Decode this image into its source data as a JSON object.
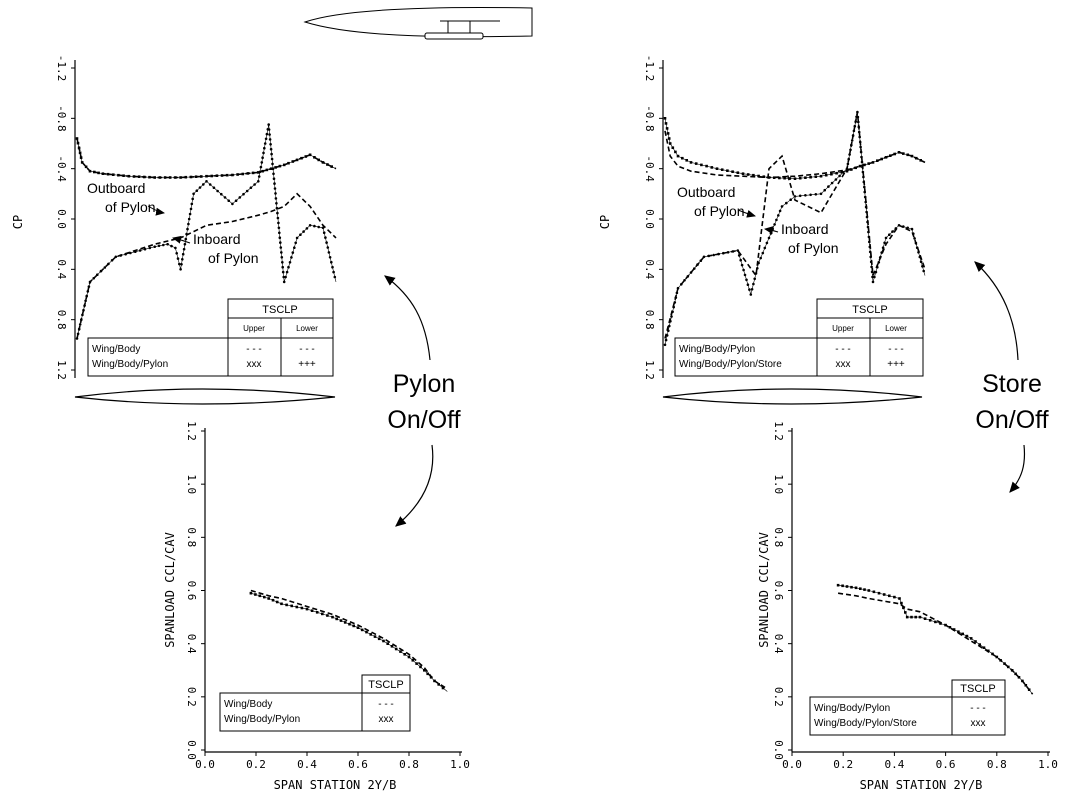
{
  "chart_data": [
    {
      "type": "line",
      "panel": "cp-left",
      "ylabel": "CP",
      "ylim": [
        1.2,
        -1.2
      ],
      "y_ticks": [
        "-1.2",
        "-0.8",
        "-0.4",
        "0.0",
        "0.4",
        "0.8",
        "1.2"
      ],
      "annotations": [
        "Outboard",
        "of Pylon",
        "Inboard",
        "of Pylon"
      ],
      "legend": {
        "header": "TSCLP",
        "cols": [
          "Upper",
          "Lower"
        ],
        "rows": [
          {
            "label": "Wing/Body",
            "upper": "- - -",
            "lower": "- - -"
          },
          {
            "label": "Wing/Body/Pylon",
            "upper": "xxx",
            "lower": "+++"
          }
        ]
      },
      "series": [
        {
          "name": "Wing/Body",
          "marker": "dash",
          "x": [
            0.0,
            0.02,
            0.05,
            0.1,
            0.2,
            0.3,
            0.4,
            0.5,
            0.6,
            0.7,
            0.75,
            0.8,
            0.85,
            0.9,
            0.95,
            1.0
          ],
          "y": [
            -0.64,
            -0.45,
            -0.38,
            -0.36,
            -0.34,
            -0.33,
            -0.33,
            -0.34,
            -0.35,
            -0.37,
            -0.4,
            -0.43,
            -0.47,
            -0.51,
            -0.45,
            -0.4
          ]
        },
        {
          "name": "Wing/Body/Pylon",
          "marker": "x",
          "x": [
            0.0,
            0.02,
            0.05,
            0.1,
            0.2,
            0.3,
            0.4,
            0.5,
            0.6,
            0.7,
            0.75,
            0.8,
            0.85,
            0.9,
            0.95,
            1.0
          ],
          "y": [
            -0.64,
            -0.45,
            -0.38,
            -0.36,
            -0.34,
            -0.33,
            -0.33,
            -0.34,
            -0.35,
            -0.37,
            -0.4,
            -0.43,
            -0.47,
            -0.51,
            -0.45,
            -0.4
          ]
        },
        {
          "name": "Wing/Body",
          "marker": "dash",
          "x": [
            0.0,
            0.05,
            0.15,
            0.3,
            0.4,
            0.45,
            0.5,
            0.6,
            0.7,
            0.75,
            0.8,
            0.85,
            0.9,
            0.95,
            1.0
          ],
          "y": [
            0.95,
            0.5,
            0.3,
            0.2,
            0.15,
            0.1,
            0.05,
            0.02,
            -0.03,
            -0.06,
            -0.1,
            -0.2,
            -0.1,
            0.05,
            0.15
          ]
        },
        {
          "name": "Wing/Body/Pylon",
          "marker": "+",
          "x": [
            0.0,
            0.05,
            0.15,
            0.3,
            0.35,
            0.38,
            0.4,
            0.45,
            0.5,
            0.6,
            0.7,
            0.74,
            0.8,
            0.85,
            0.9,
            0.95,
            1.0
          ],
          "y": [
            0.95,
            0.5,
            0.3,
            0.22,
            0.2,
            0.23,
            0.4,
            -0.2,
            -0.3,
            -0.12,
            -0.3,
            -0.75,
            0.5,
            0.15,
            0.05,
            0.07,
            0.5
          ]
        }
      ]
    },
    {
      "type": "line",
      "panel": "cp-right",
      "ylabel": "CP",
      "ylim": [
        1.2,
        -1.2
      ],
      "y_ticks": [
        "-1.2",
        "-0.8",
        "-0.4",
        "0.0",
        "0.4",
        "0.8",
        "1.2"
      ],
      "annotations": [
        "Outboard",
        "of Pylon",
        "Inboard",
        "of Pylon"
      ],
      "legend": {
        "header": "TSCLP",
        "cols": [
          "Upper",
          "Lower"
        ],
        "rows": [
          {
            "label": "Wing/Body/Pylon",
            "upper": "- - -",
            "lower": "- - -"
          },
          {
            "label": "Wing/Body/Pylon/Store",
            "upper": "xxx",
            "lower": "+++"
          }
        ]
      },
      "series": [
        {
          "name": "Wing/Body/Pylon",
          "marker": "dash",
          "x": [
            0.0,
            0.02,
            0.05,
            0.1,
            0.2,
            0.3,
            0.4,
            0.5,
            0.6,
            0.7,
            0.75,
            0.8,
            0.85,
            0.9,
            0.95,
            1.0
          ],
          "y": [
            -0.7,
            -0.5,
            -0.42,
            -0.38,
            -0.35,
            -0.34,
            -0.33,
            -0.34,
            -0.36,
            -0.39,
            -0.42,
            -0.45,
            -0.49,
            -0.53,
            -0.5,
            -0.45
          ]
        },
        {
          "name": "Wing/Body/Pylon/Store",
          "marker": "x",
          "x": [
            0.0,
            0.02,
            0.05,
            0.1,
            0.2,
            0.3,
            0.4,
            0.5,
            0.6,
            0.7,
            0.75,
            0.8,
            0.85,
            0.9,
            0.95,
            1.0
          ],
          "y": [
            -0.8,
            -0.6,
            -0.5,
            -0.45,
            -0.4,
            -0.36,
            -0.33,
            -0.32,
            -0.34,
            -0.38,
            -0.42,
            -0.45,
            -0.49,
            -0.53,
            -0.5,
            -0.45
          ]
        },
        {
          "name": "Wing/Body/Pylon",
          "marker": "dash",
          "x": [
            0.0,
            0.05,
            0.15,
            0.28,
            0.35,
            0.4,
            0.45,
            0.5,
            0.6,
            0.7,
            0.74,
            0.8,
            0.85,
            0.9,
            0.95,
            1.0
          ],
          "y": [
            0.95,
            0.55,
            0.3,
            0.25,
            0.45,
            -0.4,
            -0.5,
            -0.15,
            -0.05,
            -0.4,
            -0.85,
            0.45,
            0.2,
            0.05,
            0.1,
            0.4
          ]
        },
        {
          "name": "Wing/Body/Pylon/Store",
          "marker": "+",
          "x": [
            0.0,
            0.05,
            0.15,
            0.28,
            0.33,
            0.36,
            0.4,
            0.45,
            0.5,
            0.6,
            0.7,
            0.74,
            0.8,
            0.85,
            0.9,
            0.95,
            1.0
          ],
          "y": [
            1.0,
            0.55,
            0.3,
            0.25,
            0.6,
            0.35,
            0.15,
            -0.1,
            -0.18,
            -0.2,
            -0.4,
            -0.85,
            0.5,
            0.15,
            0.05,
            0.08,
            0.45
          ]
        }
      ]
    },
    {
      "type": "line",
      "panel": "span-left",
      "xlabel": "SPAN STATION 2Y/B",
      "ylabel": "SPANLOAD CCL/CAV",
      "xlim": [
        0.0,
        1.0
      ],
      "ylim": [
        0.0,
        1.2
      ],
      "x_ticks": [
        "0.0",
        "0.2",
        "0.4",
        "0.6",
        "0.8",
        "1.0"
      ],
      "y_ticks": [
        "0.0",
        "0.2",
        "0.4",
        "0.6",
        "0.8",
        "1.0",
        "1.2"
      ],
      "legend": {
        "header": "TSCLP",
        "rows": [
          {
            "label": "Wing/Body",
            "value": "- - -"
          },
          {
            "label": "Wing/Body/Pylon",
            "value": "xxx"
          }
        ]
      },
      "series": [
        {
          "name": "Wing/Body",
          "marker": "dash",
          "x": [
            0.18,
            0.25,
            0.3,
            0.4,
            0.5,
            0.6,
            0.7,
            0.8,
            0.86,
            0.9,
            0.95
          ],
          "y": [
            0.6,
            0.58,
            0.57,
            0.54,
            0.51,
            0.47,
            0.42,
            0.36,
            0.31,
            0.26,
            0.23
          ]
        },
        {
          "name": "Wing/Body/Pylon",
          "marker": "x",
          "x": [
            0.18,
            0.25,
            0.3,
            0.4,
            0.5,
            0.6,
            0.7,
            0.8,
            0.86,
            0.9,
            0.95
          ],
          "y": [
            0.59,
            0.57,
            0.55,
            0.53,
            0.5,
            0.46,
            0.41,
            0.35,
            0.3,
            0.26,
            0.22
          ]
        }
      ]
    },
    {
      "type": "line",
      "panel": "span-right",
      "xlabel": "SPAN STATION 2Y/B",
      "ylabel": "SPANLOAD CCL/CAV",
      "xlim": [
        0.0,
        1.0
      ],
      "ylim": [
        0.0,
        1.2
      ],
      "x_ticks": [
        "0.0",
        "0.2",
        "0.4",
        "0.6",
        "0.8",
        "1.0"
      ],
      "y_ticks": [
        "0.0",
        "0.2",
        "0.4",
        "0.6",
        "0.8",
        "1.0",
        "1.2"
      ],
      "legend": {
        "header": "TSCLP",
        "rows": [
          {
            "label": "Wing/Body/Pylon",
            "value": "- - -"
          },
          {
            "label": "Wing/Body/Pylon/Store",
            "value": "xxx"
          }
        ]
      },
      "series": [
        {
          "name": "Wing/Body/Pylon",
          "marker": "dash",
          "x": [
            0.18,
            0.25,
            0.3,
            0.42,
            0.45,
            0.5,
            0.6,
            0.7,
            0.8,
            0.86,
            0.9,
            0.94
          ],
          "y": [
            0.59,
            0.58,
            0.57,
            0.55,
            0.53,
            0.52,
            0.47,
            0.41,
            0.35,
            0.3,
            0.26,
            0.21
          ]
        },
        {
          "name": "Wing/Body/Pylon/Store",
          "marker": "x",
          "x": [
            0.18,
            0.25,
            0.3,
            0.42,
            0.45,
            0.5,
            0.6,
            0.7,
            0.8,
            0.86,
            0.9,
            0.94
          ],
          "y": [
            0.62,
            0.61,
            0.6,
            0.57,
            0.5,
            0.5,
            0.47,
            0.42,
            0.35,
            0.3,
            0.26,
            0.21
          ]
        }
      ]
    }
  ],
  "callouts": {
    "left": [
      "Pylon",
      "On/Off"
    ],
    "right": [
      "Store",
      "On/Off"
    ]
  }
}
